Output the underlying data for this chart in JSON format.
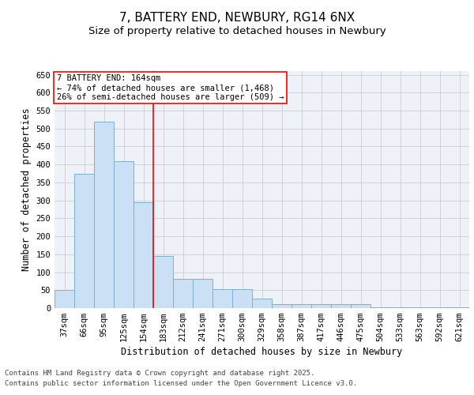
{
  "title_line1": "7, BATTERY END, NEWBURY, RG14 6NX",
  "title_line2": "Size of property relative to detached houses in Newbury",
  "xlabel": "Distribution of detached houses by size in Newbury",
  "ylabel": "Number of detached properties",
  "categories": [
    "37sqm",
    "66sqm",
    "95sqm",
    "125sqm",
    "154sqm",
    "183sqm",
    "212sqm",
    "241sqm",
    "271sqm",
    "300sqm",
    "329sqm",
    "358sqm",
    "387sqm",
    "417sqm",
    "446sqm",
    "475sqm",
    "504sqm",
    "533sqm",
    "563sqm",
    "592sqm",
    "621sqm"
  ],
  "values": [
    50,
    375,
    520,
    410,
    295,
    145,
    82,
    82,
    53,
    53,
    27,
    10,
    10,
    10,
    10,
    10,
    3,
    3,
    3,
    2,
    2
  ],
  "bar_color": "#cce0f5",
  "bar_edge_color": "#7aafd4",
  "red_line_x": 4.5,
  "annotation_text": "7 BATTERY END: 164sqm\n← 74% of detached houses are smaller (1,468)\n26% of semi-detached houses are larger (509) →",
  "annotation_box_color": "white",
  "annotation_box_edge": "red",
  "ylim": [
    0,
    660
  ],
  "yticks": [
    0,
    50,
    100,
    150,
    200,
    250,
    300,
    350,
    400,
    450,
    500,
    550,
    600,
    650
  ],
  "grid_color": "#cccccc",
  "bg_color": "#eef2f8",
  "footer_line1": "Contains HM Land Registry data © Crown copyright and database right 2025.",
  "footer_line2": "Contains public sector information licensed under the Open Government Licence v3.0.",
  "title_fontsize": 11,
  "subtitle_fontsize": 9.5,
  "axis_label_fontsize": 8.5,
  "tick_fontsize": 7.5,
  "annotation_fontsize": 7.5,
  "footer_fontsize": 6.5
}
